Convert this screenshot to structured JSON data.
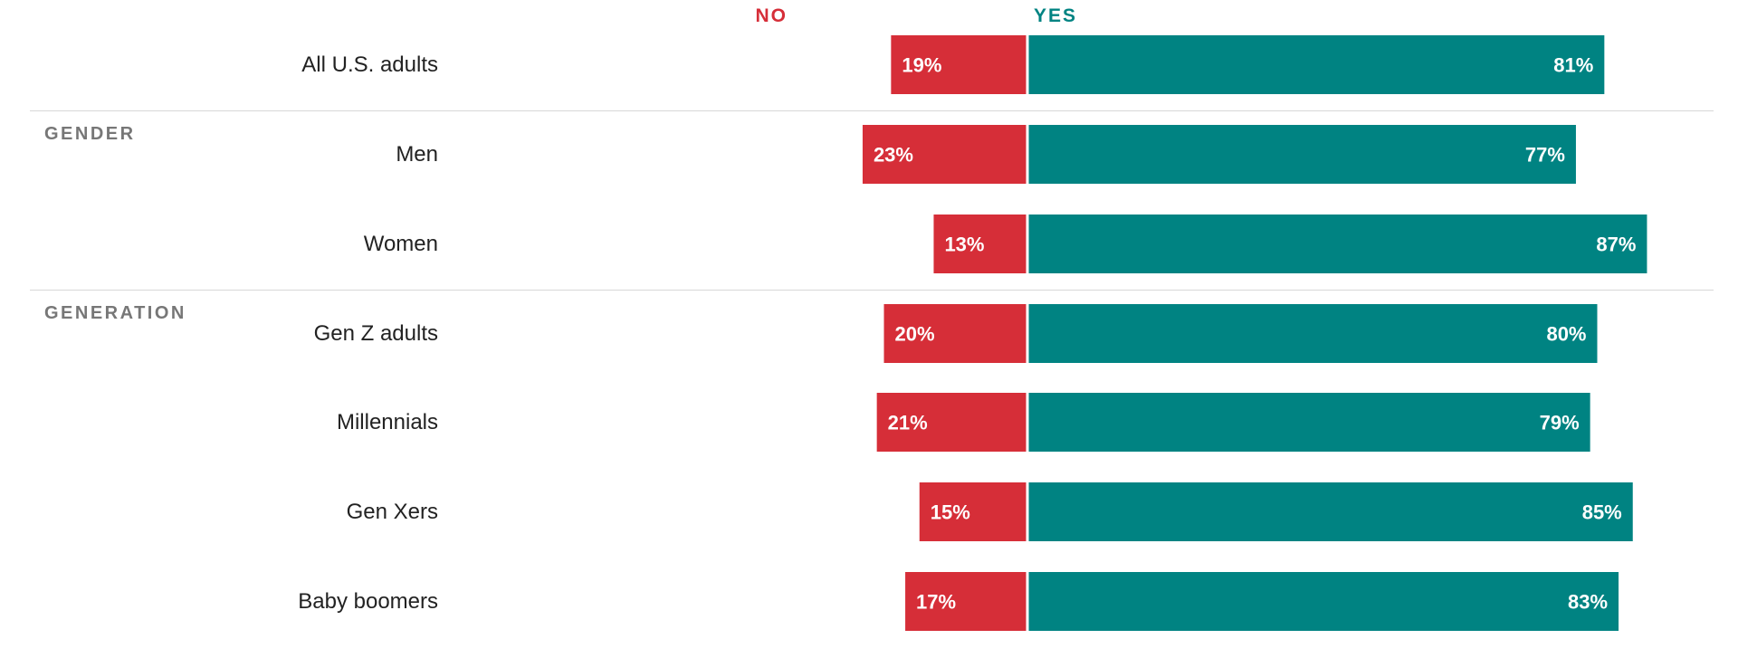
{
  "colors": {
    "no": "#d62e38",
    "yes": "#008382",
    "label": "#222222",
    "group": "#777777"
  },
  "legend": {
    "no": "NO",
    "yes": "YES"
  },
  "groups": [
    {
      "label": "",
      "rows": [
        0
      ]
    },
    {
      "label": "GENDER",
      "rows": [
        1,
        2
      ]
    },
    {
      "label": "GENERATION",
      "rows": [
        3,
        4,
        5,
        6
      ]
    }
  ],
  "chart_data": {
    "type": "bar",
    "orientation": "horizontal-diverging",
    "categories": [
      "All U.S. adults",
      "Men",
      "Women",
      "Gen Z adults",
      "Millennials",
      "Gen Xers",
      "Baby boomers"
    ],
    "series": [
      {
        "name": "NO",
        "values": [
          19,
          23,
          13,
          20,
          21,
          15,
          17
        ],
        "labels": [
          "19%",
          "23%",
          "13%",
          "20%",
          "21%",
          "15%",
          "17%"
        ]
      },
      {
        "name": "YES",
        "values": [
          81,
          77,
          87,
          80,
          79,
          85,
          83
        ],
        "labels": [
          "81%",
          "77%",
          "87%",
          "80%",
          "79%",
          "85%",
          "83%"
        ]
      }
    ],
    "unit": "%",
    "xlim": [
      0,
      100
    ],
    "grid": false,
    "legend_position": "top-center"
  }
}
